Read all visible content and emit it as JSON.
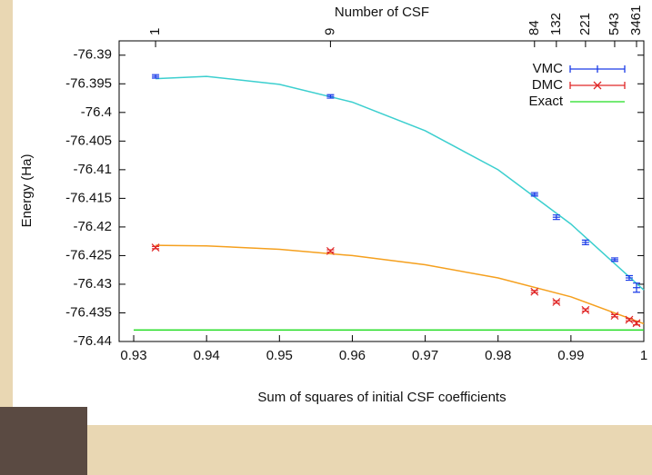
{
  "chart_data": {
    "type": "scatter",
    "x2label": "Number of CSF",
    "xlabel": "Sum of squares of initial CSF coefficients",
    "ylabel": "Energy (Ha)",
    "xlim": [
      0.928,
      1.0
    ],
    "ylim": [
      -76.44,
      -76.3875
    ],
    "xticks": [
      0.93,
      0.94,
      0.95,
      0.96,
      0.97,
      0.98,
      0.99,
      1
    ],
    "x2ticks": [
      {
        "value": 0.933,
        "label": "1"
      },
      {
        "value": 0.957,
        "label": "9"
      },
      {
        "value": 0.985,
        "label": "84"
      },
      {
        "value": 0.988,
        "label": "132"
      },
      {
        "value": 0.992,
        "label": "221"
      },
      {
        "value": 0.996,
        "label": "543"
      },
      {
        "value": 0.999,
        "label": "3461"
      }
    ],
    "yticks": [
      -76.44,
      -76.435,
      -76.43,
      -76.425,
      -76.42,
      -76.415,
      -76.41,
      -76.405,
      -76.4,
      -76.395,
      -76.39
    ],
    "series": [
      {
        "name": "VMC",
        "color": "#1a3be8",
        "x": [
          0.933,
          0.957,
          0.985,
          0.988,
          0.992,
          0.996,
          0.998,
          0.999
        ],
        "values": [
          -76.3937,
          -76.3972,
          -76.4143,
          -76.4183,
          -76.4227,
          -76.4257,
          -76.4289,
          -76.4306
        ],
        "errors": [
          0.0003,
          0.0003,
          0.0003,
          0.0004,
          0.0004,
          0.0003,
          0.0004,
          0.0008
        ]
      },
      {
        "name": "DMC",
        "color": "#e02828",
        "x": [
          0.933,
          0.957,
          0.985,
          0.988,
          0.992,
          0.996,
          0.998,
          0.999
        ],
        "values": [
          -76.4236,
          -76.4242,
          -76.4313,
          -76.4331,
          -76.4345,
          -76.4355,
          -76.4362,
          -76.4368
        ],
        "errors": [
          0.0002,
          0.0002,
          0.0002,
          0.0002,
          0.0002,
          0.0002,
          0.0002,
          0.0003
        ]
      },
      {
        "name": "Exact",
        "color": "#22dd22",
        "x": [
          0.93,
          1.0
        ],
        "values": [
          -76.438,
          -76.438
        ]
      }
    ],
    "fits": [
      {
        "color": "#3ccfcf",
        "x": [
          0.933,
          0.94,
          0.95,
          0.96,
          0.97,
          0.98,
          0.99,
          1.0
        ],
        "values": [
          -76.3941,
          -76.3937,
          -76.3951,
          -76.3982,
          -76.4032,
          -76.41,
          -76.4195,
          -76.431
        ]
      },
      {
        "color": "#f5a01e",
        "x": [
          0.933,
          0.94,
          0.95,
          0.96,
          0.97,
          0.98,
          0.99,
          1.0
        ],
        "values": [
          -76.4232,
          -76.4233,
          -76.4239,
          -76.425,
          -76.4266,
          -76.4289,
          -76.4322,
          -76.4369
        ]
      }
    ]
  }
}
